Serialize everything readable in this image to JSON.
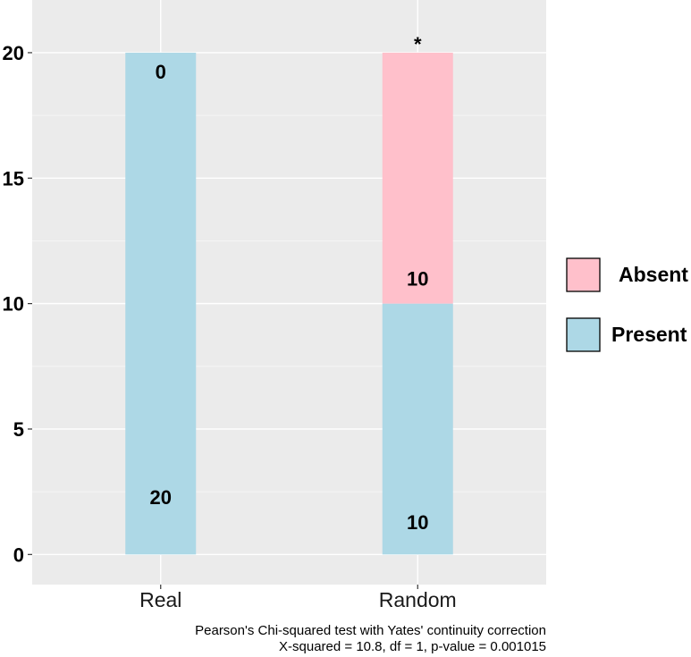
{
  "chart_data": {
    "type": "bar",
    "stacked": true,
    "categories": [
      "Real",
      "Random"
    ],
    "series": [
      {
        "name": "Present",
        "values": [
          20,
          10
        ],
        "color": "#add8e6"
      },
      {
        "name": "Absent",
        "values": [
          0,
          10
        ],
        "color": "#ffc0cb"
      }
    ],
    "data_labels": {
      "Present": [
        "20",
        "10"
      ],
      "Absent": [
        "0",
        "10"
      ]
    },
    "significance": {
      "category": "Random",
      "label": "*"
    },
    "ylim": [
      -1.2,
      22.1
    ],
    "yticks": [
      0,
      5,
      10,
      15,
      20
    ],
    "legend": {
      "position": "right",
      "entries": [
        "Absent",
        "Present"
      ]
    },
    "grid": true,
    "panel_background": "#ebebeb",
    "xlabel": "",
    "ylabel": ""
  },
  "caption": {
    "line1": "Pearson's Chi-squared test with Yates' continuity correction",
    "line2": "X-squared = 10.8, df = 1, p-value = 0.001015"
  }
}
